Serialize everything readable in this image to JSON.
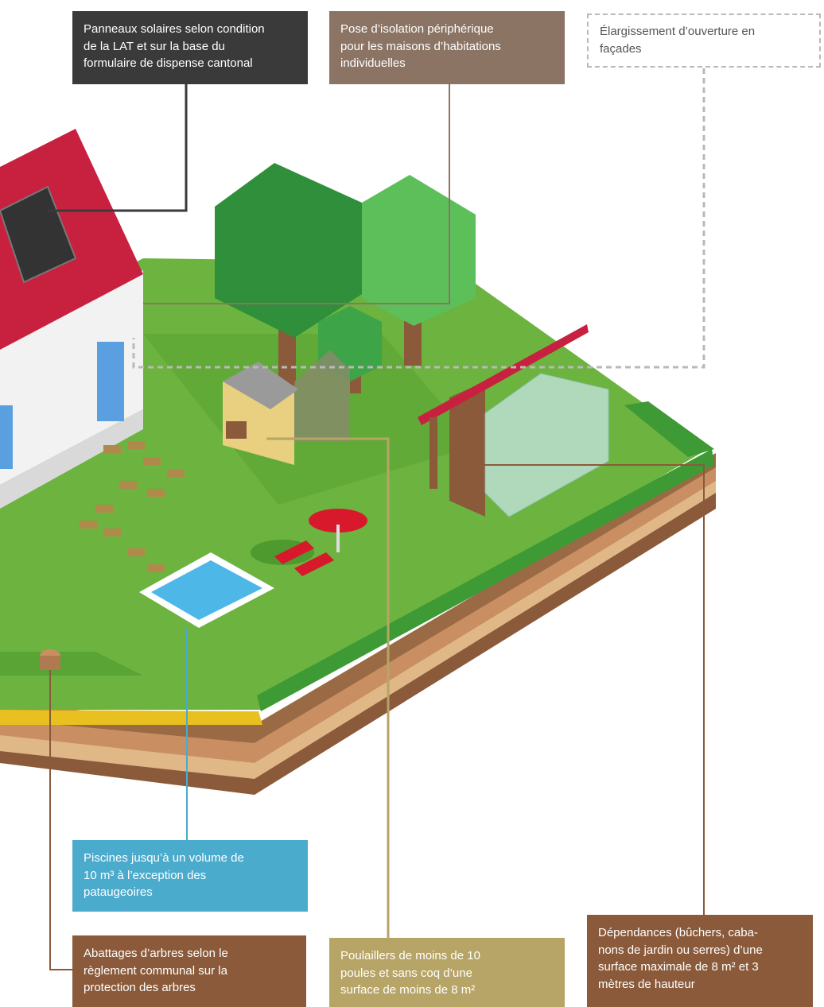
{
  "labels": {
    "solar": {
      "lines": [
        "Panneaux solaires selon condition",
        "de la LAT et sur la base du",
        "formulaire de dispense cantonal"
      ],
      "color": "#3a3a3a"
    },
    "insulation": {
      "lines": [
        "Pose d’isolation périphérique",
        "pour les maisons d’habitations",
        "individuelles"
      ],
      "color": "#8b7464"
    },
    "opening": {
      "lines": [
        "Élargissement d’ouverture en",
        "façades"
      ],
      "color": "#b9b9b9"
    },
    "pool": {
      "lines": [
        "Piscines jusqu’à un volume de",
        "10 m³ à l’exception des",
        "pataugeoires"
      ],
      "color": "#4aabcd"
    },
    "trees": {
      "lines": [
        "Abattages d’arbres selon le",
        "règlement communal sur la",
        "protection des arbres"
      ],
      "color": "#8a5a3a"
    },
    "chicken": {
      "lines": [
        "Poulaillers de moins de 10",
        "poules et sans coq d’une",
        "surface de moins de 8 m²"
      ],
      "color": "#b7a467"
    },
    "annex": {
      "lines": [
        "Dépendances (bûchers, caba-",
        "nons de jardin ou serres) d’une",
        "surface maximale de 8 m² et 3",
        "mètres de hauteur"
      ],
      "color": "#8a5a3a"
    }
  },
  "colors": {
    "grass": "#6cb33f",
    "grass_dark": "#4f9a2e",
    "roof": "#c8213f",
    "wall": "#f2f2f2",
    "hedge": "#3e9a34",
    "soil_1": "#9a6a45",
    "soil_2": "#c98f63",
    "soil_3": "#e0b888",
    "soil_4": "#8a5a3a",
    "pool_water": "#4db7e8",
    "path_tiles": "#b08a4a",
    "tree_dark": "#2f8f3a",
    "tree_light": "#5cbf5a"
  }
}
